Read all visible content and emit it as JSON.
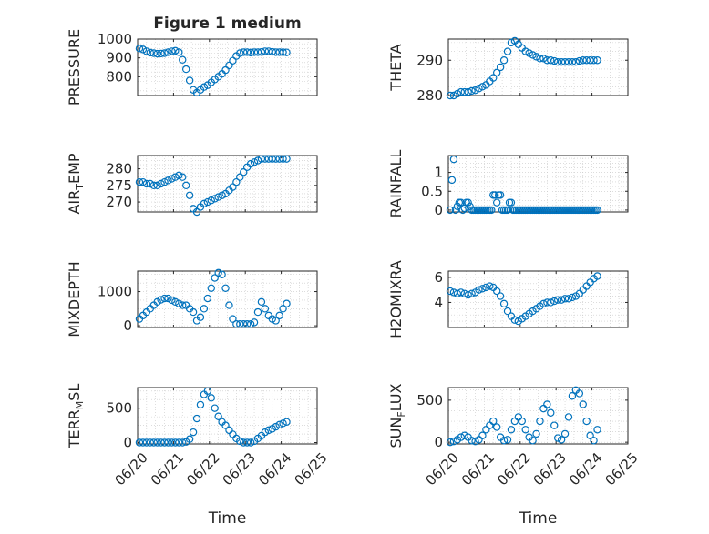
{
  "chart_data": [
    {
      "type": "scatter",
      "title": "Figure 1 medium",
      "ylabel": "PRESSURE",
      "xlabel": "",
      "xlim": [
        0,
        5
      ],
      "ylim": [
        700,
        1000
      ],
      "yticks": [
        800,
        900,
        1000
      ],
      "xticklabels": [
        "06/20",
        "06/21",
        "06/22",
        "06/23",
        "06/24",
        "06/25"
      ],
      "show_xticklabels": false,
      "grid": true,
      "series": [
        {
          "color": "#0072BD",
          "marker": "circle",
          "x": [
            0.05,
            0.15,
            0.25,
            0.35,
            0.45,
            0.55,
            0.65,
            0.75,
            0.85,
            0.95,
            1.05,
            1.15,
            1.25,
            1.35,
            1.45,
            1.55,
            1.65,
            1.75,
            1.85,
            1.95,
            2.05,
            2.15,
            2.25,
            2.35,
            2.45,
            2.55,
            2.65,
            2.75,
            2.85,
            2.95,
            3.05,
            3.15,
            3.25,
            3.35,
            3.45,
            3.55,
            3.65,
            3.75,
            3.85,
            3.95,
            4.05,
            4.15
          ],
          "y": [
            950,
            945,
            935,
            928,
            925,
            922,
            923,
            925,
            930,
            935,
            938,
            930,
            890,
            840,
            780,
            730,
            715,
            730,
            745,
            755,
            770,
            785,
            800,
            815,
            835,
            860,
            885,
            910,
            925,
            930,
            930,
            928,
            930,
            930,
            931,
            935,
            935,
            932,
            930,
            930,
            930,
            929
          ]
        }
      ]
    },
    {
      "type": "scatter",
      "title": "",
      "ylabel": "THETA",
      "xlabel": "",
      "xlim": [
        0,
        5
      ],
      "ylim": [
        280,
        296
      ],
      "yticks": [
        280,
        290
      ],
      "xticklabels": [
        "06/20",
        "06/21",
        "06/22",
        "06/23",
        "06/24",
        "06/25"
      ],
      "show_xticklabels": false,
      "grid": true,
      "series": [
        {
          "color": "#0072BD",
          "marker": "circle",
          "x": [
            0.05,
            0.15,
            0.25,
            0.35,
            0.45,
            0.55,
            0.65,
            0.75,
            0.85,
            0.95,
            1.05,
            1.15,
            1.25,
            1.35,
            1.45,
            1.55,
            1.65,
            1.75,
            1.85,
            1.95,
            2.05,
            2.15,
            2.25,
            2.35,
            2.45,
            2.55,
            2.65,
            2.75,
            2.85,
            2.95,
            3.05,
            3.15,
            3.25,
            3.35,
            3.45,
            3.55,
            3.65,
            3.75,
            3.85,
            3.95,
            4.05,
            4.15
          ],
          "y": [
            280,
            280,
            280.5,
            281,
            281,
            281,
            281.3,
            281.5,
            282,
            282.5,
            283,
            284,
            285,
            286.5,
            288,
            290,
            292.5,
            295,
            295.5,
            294.5,
            293.5,
            292.5,
            292,
            291.5,
            291,
            290.5,
            290.5,
            290,
            290,
            289.8,
            289.5,
            289.5,
            289.5,
            289.5,
            289.5,
            289.5,
            289.8,
            290,
            290,
            290,
            290,
            290
          ]
        }
      ]
    },
    {
      "type": "scatter",
      "title": "",
      "ylabel": "AIR_TEMP",
      "xlabel": "",
      "xlim": [
        0,
        5
      ],
      "ylim": [
        267,
        284
      ],
      "yticks": [
        270,
        275,
        280
      ],
      "xticklabels": [
        "06/20",
        "06/21",
        "06/22",
        "06/23",
        "06/24",
        "06/25"
      ],
      "show_xticklabels": false,
      "grid": true,
      "series": [
        {
          "color": "#0072BD",
          "marker": "circle",
          "x": [
            0.05,
            0.15,
            0.25,
            0.35,
            0.45,
            0.55,
            0.65,
            0.75,
            0.85,
            0.95,
            1.05,
            1.15,
            1.25,
            1.35,
            1.45,
            1.55,
            1.65,
            1.75,
            1.85,
            1.95,
            2.05,
            2.15,
            2.25,
            2.35,
            2.45,
            2.55,
            2.65,
            2.75,
            2.85,
            2.95,
            3.05,
            3.15,
            3.25,
            3.35,
            3.45,
            3.55,
            3.65,
            3.75,
            3.85,
            3.95,
            4.05,
            4.15
          ],
          "y": [
            276,
            276,
            275.5,
            275.5,
            275,
            275,
            275.5,
            276,
            276.5,
            277,
            277.5,
            278,
            277.5,
            275,
            272,
            268,
            267,
            268.5,
            269.5,
            270,
            270.5,
            271,
            271.5,
            272,
            272.5,
            273.5,
            274.5,
            276,
            277.5,
            279,
            280.5,
            281.5,
            282,
            282.5,
            283,
            283,
            283,
            283,
            283,
            283,
            283,
            283
          ]
        }
      ]
    },
    {
      "type": "scatter",
      "title": "",
      "ylabel": "RAINFALL",
      "xlabel": "",
      "xlim": [
        0,
        5
      ],
      "ylim": [
        -0.05,
        1.45
      ],
      "yticks": [
        0,
        0.5,
        1
      ],
      "xticklabels": [
        "06/20",
        "06/21",
        "06/22",
        "06/23",
        "06/24",
        "06/25"
      ],
      "show_xticklabels": false,
      "grid": true,
      "series": [
        {
          "color": "#0072BD",
          "marker": "circle",
          "x": [
            0.05,
            0.1,
            0.15,
            0.2,
            0.25,
            0.3,
            0.35,
            0.4,
            0.45,
            0.5,
            0.55,
            0.6,
            0.65,
            0.7,
            0.75,
            0.8,
            0.85,
            0.9,
            0.95,
            1.0,
            1.05,
            1.1,
            1.15,
            1.2,
            1.25,
            1.3,
            1.35,
            1.4,
            1.45,
            1.5,
            1.55,
            1.6,
            1.65,
            1.7,
            1.75,
            1.8,
            1.85,
            1.9,
            1.95,
            2.0,
            2.05,
            2.1,
            2.15,
            2.2,
            2.25,
            2.3,
            2.35,
            2.4,
            2.45,
            2.5,
            2.55,
            2.6,
            2.65,
            2.7,
            2.75,
            2.8,
            2.85,
            2.9,
            2.95,
            3.0,
            3.05,
            3.1,
            3.15,
            3.2,
            3.25,
            3.3,
            3.35,
            3.4,
            3.45,
            3.5,
            3.55,
            3.6,
            3.65,
            3.7,
            3.75,
            3.8,
            3.85,
            3.9,
            3.95,
            4.0,
            4.05,
            4.1,
            4.15
          ],
          "y": [
            0,
            0.8,
            1.35,
            0,
            0.1,
            0.2,
            0.2,
            0,
            0.05,
            0.2,
            0.2,
            0.1,
            0,
            0,
            0,
            0,
            0,
            0,
            0,
            0,
            0,
            0,
            0,
            0,
            0.4,
            0.4,
            0.2,
            0.4,
            0.4,
            0,
            0,
            0,
            0,
            0.2,
            0.2,
            0,
            0,
            0,
            0,
            0,
            0,
            0,
            0,
            0,
            0,
            0,
            0,
            0,
            0,
            0,
            0,
            0,
            0,
            0,
            0,
            0,
            0,
            0,
            0,
            0,
            0,
            0,
            0,
            0,
            0,
            0,
            0,
            0,
            0,
            0,
            0,
            0,
            0,
            0,
            0,
            0,
            0,
            0,
            0,
            0,
            0,
            0,
            0
          ]
        }
      ]
    },
    {
      "type": "scatter",
      "title": "",
      "ylabel": "MIXDEPTH",
      "xlabel": "",
      "xlim": [
        0,
        5
      ],
      "ylim": [
        -50,
        1600
      ],
      "yticks": [
        0,
        1000
      ],
      "xticklabels": [
        "06/20",
        "06/21",
        "06/22",
        "06/23",
        "06/24",
        "06/25"
      ],
      "show_xticklabels": false,
      "grid": true,
      "series": [
        {
          "color": "#0072BD",
          "marker": "circle",
          "x": [
            0.05,
            0.15,
            0.25,
            0.35,
            0.45,
            0.55,
            0.65,
            0.75,
            0.85,
            0.95,
            1.05,
            1.15,
            1.25,
            1.35,
            1.45,
            1.55,
            1.65,
            1.75,
            1.85,
            1.95,
            2.05,
            2.15,
            2.25,
            2.35,
            2.45,
            2.55,
            2.65,
            2.75,
            2.85,
            2.95,
            3.05,
            3.15,
            3.25,
            3.35,
            3.45,
            3.55,
            3.65,
            3.75,
            3.85,
            3.95,
            4.05,
            4.15
          ],
          "y": [
            200,
            300,
            400,
            500,
            600,
            700,
            760,
            800,
            800,
            750,
            700,
            650,
            600,
            600,
            500,
            400,
            150,
            250,
            500,
            800,
            1100,
            1400,
            1550,
            1500,
            1100,
            600,
            200,
            50,
            50,
            50,
            50,
            50,
            100,
            400,
            700,
            500,
            300,
            200,
            150,
            300,
            500,
            650
          ]
        }
      ]
    },
    {
      "type": "scatter",
      "title": "",
      "ylabel": "H2OMIXRA",
      "xlabel": "",
      "xlim": [
        0,
        5
      ],
      "ylim": [
        2.0,
        6.5
      ],
      "yticks": [
        4,
        6
      ],
      "xticklabels": [
        "06/20",
        "06/21",
        "06/22",
        "06/23",
        "06/24",
        "06/25"
      ],
      "show_xticklabels": false,
      "grid": true,
      "series": [
        {
          "color": "#0072BD",
          "marker": "circle",
          "x": [
            0.05,
            0.15,
            0.25,
            0.35,
            0.45,
            0.55,
            0.65,
            0.75,
            0.85,
            0.95,
            1.05,
            1.15,
            1.25,
            1.35,
            1.45,
            1.55,
            1.65,
            1.75,
            1.85,
            1.95,
            2.05,
            2.15,
            2.25,
            2.35,
            2.45,
            2.55,
            2.65,
            2.75,
            2.85,
            2.95,
            3.05,
            3.15,
            3.25,
            3.35,
            3.45,
            3.55,
            3.65,
            3.75,
            3.85,
            3.95,
            4.05,
            4.15
          ],
          "y": [
            4.9,
            4.8,
            4.7,
            4.8,
            4.7,
            4.6,
            4.7,
            4.8,
            5.0,
            5.1,
            5.2,
            5.3,
            5.2,
            4.9,
            4.5,
            3.9,
            3.3,
            2.9,
            2.6,
            2.5,
            2.7,
            2.9,
            3.1,
            3.3,
            3.5,
            3.7,
            3.9,
            4.0,
            4.0,
            4.1,
            4.2,
            4.2,
            4.3,
            4.3,
            4.4,
            4.5,
            4.7,
            5.0,
            5.3,
            5.6,
            5.9,
            6.1
          ]
        }
      ]
    },
    {
      "type": "scatter",
      "title": "",
      "ylabel": "TERR_MSL",
      "xlabel": "Time",
      "xlim": [
        0,
        5
      ],
      "ylim": [
        -20,
        800
      ],
      "yticks": [
        0,
        500
      ],
      "xticklabels": [
        "06/20",
        "06/21",
        "06/22",
        "06/23",
        "06/24",
        "06/25"
      ],
      "show_xticklabels": true,
      "grid": true,
      "series": [
        {
          "color": "#0072BD",
          "marker": "circle",
          "x": [
            0.05,
            0.15,
            0.25,
            0.35,
            0.45,
            0.55,
            0.65,
            0.75,
            0.85,
            0.95,
            1.05,
            1.15,
            1.25,
            1.35,
            1.45,
            1.55,
            1.65,
            1.75,
            1.85,
            1.95,
            2.05,
            2.15,
            2.25,
            2.35,
            2.45,
            2.55,
            2.65,
            2.75,
            2.85,
            2.95,
            3.05,
            3.15,
            3.25,
            3.35,
            3.45,
            3.55,
            3.65,
            3.75,
            3.85,
            3.95,
            4.05,
            4.15
          ],
          "y": [
            0,
            0,
            0,
            0,
            0,
            0,
            0,
            0,
            0,
            0,
            0,
            0,
            0,
            10,
            50,
            150,
            350,
            550,
            700,
            750,
            650,
            500,
            380,
            300,
            250,
            180,
            120,
            60,
            20,
            0,
            0,
            0,
            20,
            60,
            100,
            150,
            180,
            200,
            230,
            260,
            280,
            300
          ]
        }
      ]
    },
    {
      "type": "scatter",
      "title": "",
      "ylabel": "SUN_FLUX",
      "xlabel": "Time",
      "xlim": [
        0,
        5
      ],
      "ylim": [
        -20,
        650
      ],
      "yticks": [
        0,
        500
      ],
      "xticklabels": [
        "06/20",
        "06/21",
        "06/22",
        "06/23",
        "06/24",
        "06/25"
      ],
      "show_xticklabels": true,
      "grid": true,
      "series": [
        {
          "color": "#0072BD",
          "marker": "circle",
          "x": [
            0.05,
            0.15,
            0.25,
            0.35,
            0.45,
            0.55,
            0.65,
            0.75,
            0.85,
            0.95,
            1.05,
            1.15,
            1.25,
            1.35,
            1.45,
            1.55,
            1.65,
            1.75,
            1.85,
            1.95,
            2.05,
            2.15,
            2.25,
            2.35,
            2.45,
            2.55,
            2.65,
            2.75,
            2.85,
            2.95,
            3.05,
            3.15,
            3.25,
            3.35,
            3.45,
            3.55,
            3.65,
            3.75,
            3.85,
            3.95,
            4.05,
            4.15
          ],
          "y": [
            0,
            10,
            30,
            60,
            80,
            60,
            20,
            10,
            30,
            80,
            150,
            200,
            250,
            180,
            60,
            20,
            30,
            150,
            250,
            300,
            250,
            150,
            60,
            20,
            100,
            250,
            400,
            450,
            350,
            200,
            50,
            30,
            100,
            300,
            550,
            620,
            580,
            450,
            250,
            80,
            20,
            150
          ]
        }
      ]
    }
  ]
}
